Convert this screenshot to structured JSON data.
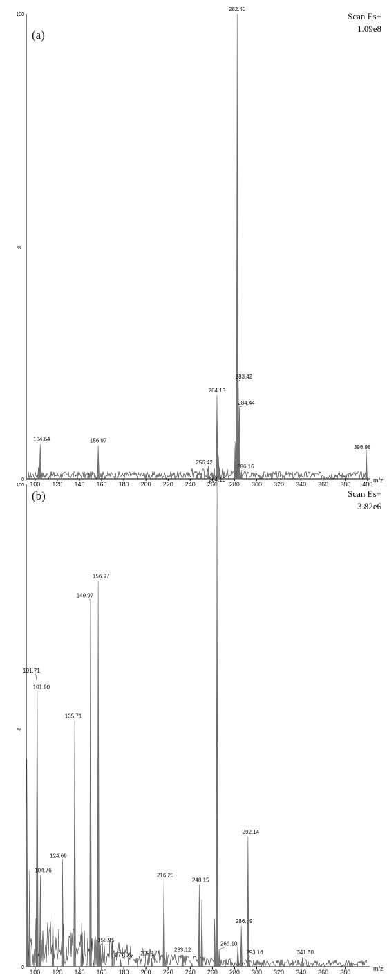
{
  "chart_data": [
    {
      "type": "line",
      "panel_label": "(a)",
      "scan_label": "Scan Es+",
      "scale_label": "1.09e8",
      "xlabel": "m/z",
      "ylabel": "%",
      "xlim": [
        92,
        402
      ],
      "ylim": [
        0,
        100
      ],
      "x_ticks": [
        100,
        120,
        140,
        160,
        180,
        200,
        220,
        240,
        260,
        280,
        300,
        320,
        340,
        360,
        380,
        400
      ],
      "y_ticks": [
        "0",
        "100"
      ],
      "grid": false,
      "peaks": [
        {
          "x": 104.64,
          "y": 7.5,
          "label": "104.64"
        },
        {
          "x": 156.97,
          "y": 7.2,
          "label": "156.97"
        },
        {
          "x": 256.42,
          "y": 2.5,
          "label": "256.42"
        },
        {
          "x": 264.13,
          "y": 18.0,
          "label": "264.13"
        },
        {
          "x": 282.4,
          "y": 100,
          "label": "282.40"
        },
        {
          "x": 283.42,
          "y": 21.0,
          "label": "283.42"
        },
        {
          "x": 284.44,
          "y": 15.5,
          "label": "284.44"
        },
        {
          "x": 286.16,
          "y": 1.6,
          "label": "286.16"
        },
        {
          "x": 398.98,
          "y": 5.8,
          "label": "398.98"
        },
        {
          "x": 103.0,
          "y": 2.5
        },
        {
          "x": 148.0,
          "y": 1.5
        },
        {
          "x": 200.0,
          "y": 1.2
        },
        {
          "x": 246.0,
          "y": 1.0
        },
        {
          "x": 250.0,
          "y": 1.3
        },
        {
          "x": 265.5,
          "y": 5.0
        },
        {
          "x": 266.5,
          "y": 2.5
        },
        {
          "x": 280.5,
          "y": 8.0
        },
        {
          "x": 281.3,
          "y": 4.0
        }
      ]
    },
    {
      "type": "line",
      "panel_label": "(b)",
      "scan_label": "Scan Es+",
      "scale_label": "3.82e6",
      "xlabel": "m/z",
      "ylabel": "%",
      "xlim": [
        92,
        402
      ],
      "ylim": [
        0,
        100
      ],
      "x_ticks": [
        100,
        120,
        140,
        160,
        180,
        200,
        220,
        240,
        260,
        280,
        300,
        320,
        340,
        360,
        380
      ],
      "y_ticks": [
        "0",
        "100"
      ],
      "grid": false,
      "peaks": [
        {
          "x": 92.5,
          "y": 43.0
        },
        {
          "x": 95.0,
          "y": 20.0
        },
        {
          "x": 101.71,
          "y": 59.0,
          "label": "101.71"
        },
        {
          "x": 101.9,
          "y": 57.0,
          "label": "101.90"
        },
        {
          "x": 104.76,
          "y": 19.0,
          "label": "104.76"
        },
        {
          "x": 116.0,
          "y": 11.0
        },
        {
          "x": 124.69,
          "y": 22.0,
          "label": "124.69"
        },
        {
          "x": 135.71,
          "y": 51.0,
          "label": "135.71"
        },
        {
          "x": 142.0,
          "y": 9.0
        },
        {
          "x": 149.97,
          "y": 76.0,
          "label": "149.97"
        },
        {
          "x": 156.97,
          "y": 80.0,
          "label": "156.97"
        },
        {
          "x": 158.95,
          "y": 4.5,
          "label": "158.95"
        },
        {
          "x": 170.0,
          "y": 6.0
        },
        {
          "x": 177.09,
          "y": 1.5,
          "label": "177.09"
        },
        {
          "x": 205.17,
          "y": 1.8,
          "label": "205.17"
        },
        {
          "x": 216.25,
          "y": 18.0,
          "label": "216.25"
        },
        {
          "x": 233.12,
          "y": 2.5,
          "label": "233.12"
        },
        {
          "x": 248.15,
          "y": 17.0,
          "label": "248.15"
        },
        {
          "x": 250.5,
          "y": 14.0
        },
        {
          "x": 262.0,
          "y": 10.0
        },
        {
          "x": 264.19,
          "y": 100,
          "label": "264.19"
        },
        {
          "x": 266.1,
          "y": 3.5,
          "label": "266.10"
        },
        {
          "x": 283.0,
          "y": 5.0
        },
        {
          "x": 286.09,
          "y": 8.5,
          "label": "286.09"
        },
        {
          "x": 292.14,
          "y": 27.0,
          "label": "292.14"
        },
        {
          "x": 293.16,
          "y": 2.0,
          "label": "293.16"
        },
        {
          "x": 341.3,
          "y": 2.0,
          "label": "341.30"
        }
      ]
    }
  ]
}
